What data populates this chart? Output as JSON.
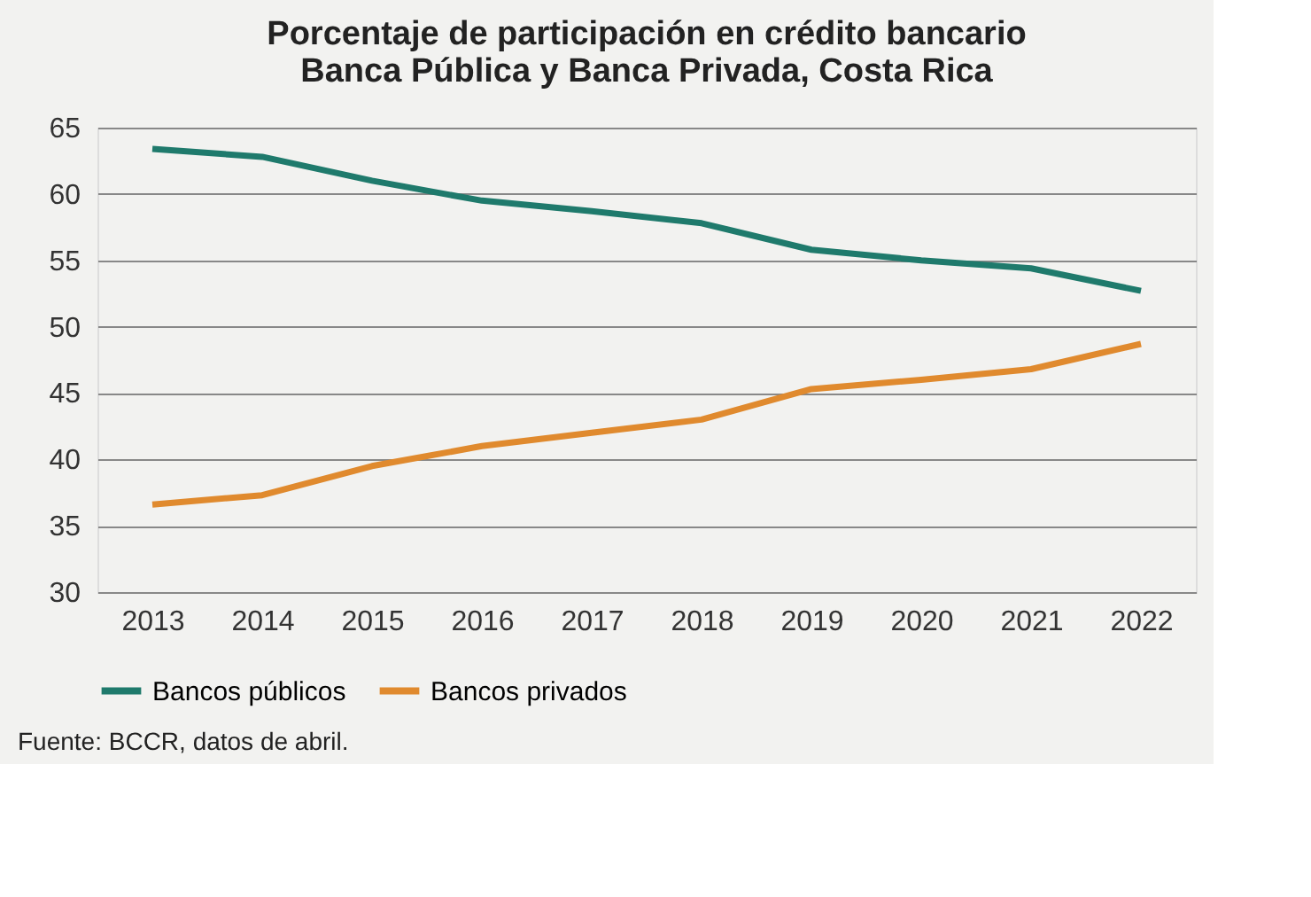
{
  "chart_data": {
    "type": "line",
    "title": [
      "Porcentaje de participación en crédito bancario",
      "Banca Pública y Banca Privada, Costa Rica"
    ],
    "categories": [
      "2013",
      "2014",
      "2015",
      "2016",
      "2017",
      "2018",
      "2019",
      "2020",
      "2021",
      "2022"
    ],
    "series": [
      {
        "name": "Bancos públicos",
        "color": "#1f7a6c",
        "values": [
          63.4,
          62.8,
          61.0,
          59.5,
          58.7,
          57.8,
          55.8,
          55.0,
          54.4,
          52.7
        ]
      },
      {
        "name": "Bancos privados",
        "color": "#e08a2e",
        "values": [
          36.6,
          37.3,
          39.5,
          41.0,
          42.0,
          43.0,
          45.3,
          46.0,
          46.8,
          48.7
        ]
      }
    ],
    "ylim": [
      30,
      65
    ],
    "yticks": [
      30,
      35,
      40,
      45,
      50,
      55,
      60,
      65
    ],
    "grid": "y",
    "legend": "bottom",
    "marker": "none",
    "line_style": "solid",
    "annotations": [
      "Fuente: BCCR, datos de abril."
    ]
  }
}
